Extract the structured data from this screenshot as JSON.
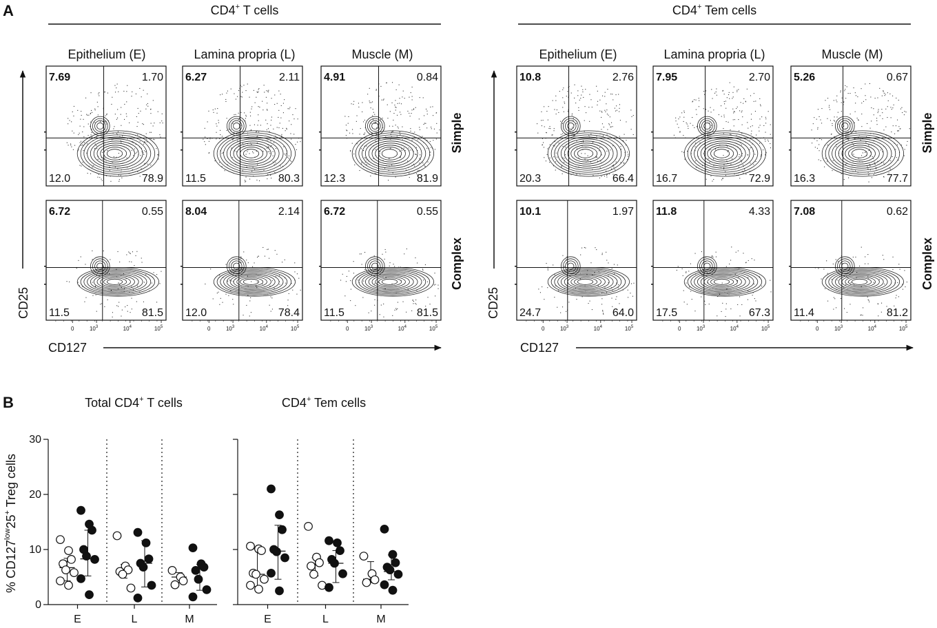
{
  "panel_a": {
    "letter": "A",
    "groups": [
      {
        "title_main": "CD4",
        "title_sup": "+",
        "title_rest": " T cells",
        "columns": [
          "Epithelium (E)",
          "Lamina propria (L)",
          "Muscle (M)"
        ],
        "x_axis_label": "CD127",
        "y_axis_label": "CD25",
        "tick_labels": [
          "0",
          "10",
          "3",
          "10",
          "4",
          "10",
          "5"
        ],
        "rows": [
          {
            "label": "Simple",
            "plots": [
              {
                "ul": "7.69",
                "ur": "1.70",
                "ll": "12.0",
                "lr": "78.9"
              },
              {
                "ul": "6.27",
                "ur": "2.11",
                "ll": "11.5",
                "lr": "80.3"
              },
              {
                "ul": "4.91",
                "ur": "0.84",
                "ll": "12.3",
                "lr": "81.9"
              }
            ]
          },
          {
            "label": "Complex",
            "plots": [
              {
                "ul": "6.72",
                "ur": "0.55",
                "ll": "11.5",
                "lr": "81.5"
              },
              {
                "ul": "8.04",
                "ur": "2.14",
                "ll": "12.0",
                "lr": "78.4"
              },
              {
                "ul": "6.72",
                "ur": "0.55",
                "ll": "11.5",
                "lr": "81.5"
              }
            ]
          }
        ]
      },
      {
        "title_main": "CD4",
        "title_sup": "+",
        "title_rest": " Tem cells",
        "columns": [
          "Epithelium (E)",
          "Lamina propria (L)",
          "Muscle (M)"
        ],
        "x_axis_label": "CD127",
        "y_axis_label": "CD25",
        "tick_labels": [
          "0",
          "10",
          "3",
          "10",
          "4",
          "10",
          "5"
        ],
        "rows": [
          {
            "label": "Simple",
            "plots": [
              {
                "ul": "10.8",
                "ur": "2.76",
                "ll": "20.3",
                "lr": "66.4"
              },
              {
                "ul": "7.95",
                "ur": "2.70",
                "ll": "16.7",
                "lr": "72.9"
              },
              {
                "ul": "5.26",
                "ur": "0.67",
                "ll": "16.3",
                "lr": "77.7"
              }
            ]
          },
          {
            "label": "Complex",
            "plots": [
              {
                "ul": "10.1",
                "ur": "1.97",
                "ll": "24.7",
                "lr": "64.0"
              },
              {
                "ul": "11.8",
                "ur": "4.33",
                "ll": "17.5",
                "lr": "67.3"
              },
              {
                "ul": "7.08",
                "ur": "0.62",
                "ll": "11.4",
                "lr": "81.2"
              }
            ]
          }
        ]
      }
    ]
  },
  "panel_b": {
    "letter": "B",
    "y_label_parts": [
      "% CD127",
      "low",
      "25",
      "+",
      " Treg cells"
    ],
    "chart_data": [
      {
        "type": "scatter",
        "title_main": "Total CD4",
        "title_sup": "+",
        "title_rest": " T cells",
        "categories": [
          "E",
          "L",
          "M"
        ],
        "ylim": [
          0,
          30
        ],
        "yticks": [
          "0",
          "10",
          "20",
          "30"
        ],
        "legend": "none",
        "series": [
          {
            "name": "Simple (open circles)",
            "values": [
              [
                11.8,
                9.8,
                8.2,
                7.4,
                6.3,
                5.8,
                4.3,
                3.5
              ],
              [
                12.5,
                7.0,
                6.3,
                6.0,
                5.5,
                3.0
              ],
              [
                6.2,
                5.0,
                4.3,
                3.6
              ]
            ],
            "median": [
              6.7,
              6.2,
              5.0
            ],
            "iqr": [
              [
                4.3,
                8.4
              ],
              [
                4.8,
                7.3
              ],
              [
                4.0,
                5.8
              ]
            ]
          },
          {
            "name": "Complex (filled circles)",
            "values": [
              [
                17.1,
                14.6,
                13.5,
                10.0,
                8.8,
                8.2,
                4.7,
                1.8
              ],
              [
                13.1,
                11.2,
                8.3,
                7.5,
                6.8,
                3.5,
                1.2
              ],
              [
                10.3,
                7.4,
                6.8,
                6.2,
                4.6,
                2.7,
                1.4
              ]
            ],
            "median": [
              8.3,
              7.5,
              6.6
            ],
            "iqr": [
              [
                5.2,
                13.5
              ],
              [
                3.2,
                11.6
              ],
              [
                2.6,
                7.3
              ]
            ]
          }
        ]
      },
      {
        "type": "scatter",
        "title_main": "CD4",
        "title_sup": "+",
        "title_rest": " Tem cells",
        "categories": [
          "E",
          "L",
          "M"
        ],
        "ylim": [
          0,
          30
        ],
        "yticks": [
          "",
          "",
          "",
          ""
        ],
        "legend": "none",
        "series": [
          {
            "name": "Simple (open circles)",
            "values": [
              [
                10.6,
                10.1,
                9.8,
                5.7,
                5.5,
                4.6,
                3.5,
                2.8
              ],
              [
                14.2,
                8.6,
                7.6,
                7.0,
                5.5,
                3.5
              ],
              [
                8.8,
                5.6,
                4.5,
                4.0
              ]
            ],
            "median": [
              5.5,
              7.3,
              4.6
            ],
            "iqr": [
              [
                3.3,
                10.1
              ],
              [
                5.2,
                8.5
              ],
              [
                4.0,
                7.8
              ]
            ]
          },
          {
            "name": "Complex (filled circles)",
            "values": [
              [
                21.0,
                16.3,
                13.6,
                10.0,
                9.6,
                8.5,
                5.7,
                2.5
              ],
              [
                11.6,
                11.2,
                9.8,
                8.2,
                7.5,
                5.6,
                3.1
              ],
              [
                13.7,
                9.1,
                7.6,
                6.8,
                6.3,
                5.5,
                3.6,
                2.6
              ]
            ],
            "median": [
              9.7,
              7.5,
              6.0
            ],
            "iqr": [
              [
                4.6,
                14.4
              ],
              [
                4.0,
                9.8
              ],
              [
                4.5,
                9.0
              ]
            ]
          }
        ]
      }
    ]
  }
}
